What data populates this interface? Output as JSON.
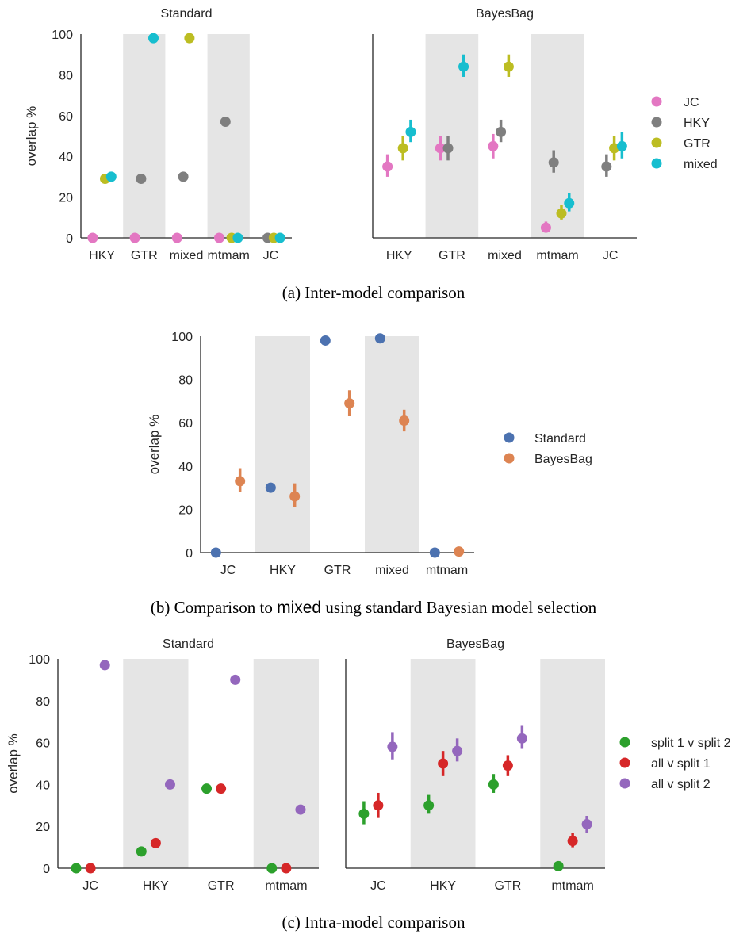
{
  "chart_data": [
    {
      "type": "scatter",
      "panel": "a",
      "caption": "(a) Inter-model comparison",
      "ylabel": "overlap %",
      "ylim": [
        0,
        100
      ],
      "yticks": [
        0,
        20,
        40,
        60,
        80,
        100
      ],
      "categories": [
        "HKY",
        "GTR",
        "mixed",
        "mtmam",
        "JC"
      ],
      "shaded_categories": [
        "GTR",
        "mtmam"
      ],
      "legend": {
        "placement": "right",
        "entries": [
          "JC",
          "HKY",
          "GTR",
          "mixed"
        ]
      },
      "colors": {
        "JC": "#e377c2",
        "HKY": "#7f7f7f",
        "GTR": "#bcbd22",
        "mixed": "#17becf"
      },
      "subplots": [
        {
          "title": "Standard",
          "series": [
            {
              "name": "JC",
              "values": [
                0,
                0,
                0,
                0,
                null
              ]
            },
            {
              "name": "HKY",
              "values": [
                null,
                29,
                30,
                57,
                0
              ]
            },
            {
              "name": "GTR",
              "values": [
                29,
                null,
                98,
                0,
                0
              ]
            },
            {
              "name": "mixed",
              "values": [
                30,
                98,
                null,
                0,
                0
              ]
            }
          ]
        },
        {
          "title": "BayesBag",
          "series": [
            {
              "name": "JC",
              "values": [
                35,
                44,
                45,
                5,
                null
              ],
              "err": [
                [
                  30,
                  41
                ],
                [
                  38,
                  50
                ],
                [
                  39,
                  51
                ],
                [
                  3,
                  8
                ],
                null
              ]
            },
            {
              "name": "HKY",
              "values": [
                null,
                44,
                52,
                37,
                35
              ],
              "err": [
                null,
                [
                  38,
                  50
                ],
                [
                  47,
                  58
                ],
                [
                  32,
                  43
                ],
                [
                  30,
                  41
                ]
              ]
            },
            {
              "name": "GTR",
              "values": [
                44,
                null,
                84,
                12,
                44
              ],
              "err": [
                [
                  38,
                  50
                ],
                null,
                [
                  79,
                  90
                ],
                [
                  9,
                  16
                ],
                [
                  38,
                  50
                ]
              ]
            },
            {
              "name": "mixed",
              "values": [
                52,
                84,
                null,
                17,
                45
              ],
              "err": [
                [
                  47,
                  58
                ],
                [
                  79,
                  90
                ],
                null,
                [
                  13,
                  22
                ],
                [
                  39,
                  52
                ]
              ]
            }
          ]
        }
      ]
    },
    {
      "type": "scatter",
      "panel": "b",
      "caption_before": "(b) Comparison to ",
      "caption_mono": "mixed",
      "caption_after": " using standard Bayesian model selection",
      "ylabel": "overlap %",
      "ylim": [
        0,
        100
      ],
      "yticks": [
        0,
        20,
        40,
        60,
        80,
        100
      ],
      "categories": [
        "JC",
        "HKY",
        "GTR",
        "mixed",
        "mtmam"
      ],
      "shaded_categories": [
        "HKY",
        "mixed"
      ],
      "legend": {
        "placement": "right",
        "entries": [
          "Standard",
          "BayesBag"
        ]
      },
      "colors": {
        "Standard": "#4c72b0",
        "BayesBag": "#dd8452"
      },
      "series": [
        {
          "name": "Standard",
          "values": [
            0,
            30,
            98,
            99,
            0
          ]
        },
        {
          "name": "BayesBag",
          "values": [
            33,
            26,
            69,
            61,
            0.5
          ],
          "err": [
            [
              28,
              39
            ],
            [
              21,
              32
            ],
            [
              63,
              75
            ],
            [
              56,
              66
            ],
            null
          ]
        }
      ]
    },
    {
      "type": "scatter",
      "panel": "c",
      "caption": "(c) Intra-model comparison",
      "ylabel": "overlap %",
      "ylim": [
        0,
        100
      ],
      "yticks": [
        0,
        20,
        40,
        60,
        80,
        100
      ],
      "categories": [
        "JC",
        "HKY",
        "GTR",
        "mtmam"
      ],
      "shaded_categories": [
        "HKY",
        "mtmam"
      ],
      "legend": {
        "placement": "right",
        "entries": [
          "split 1 v split 2",
          "all v split 1",
          "all v split 2"
        ]
      },
      "colors": {
        "split 1 v split 2": "#2ca02c",
        "all v split 1": "#d62728",
        "all v split 2": "#9467bd"
      },
      "subplots": [
        {
          "title": "Standard",
          "series": [
            {
              "name": "split 1 v split 2",
              "values": [
                0,
                8,
                38,
                0
              ]
            },
            {
              "name": "all v split 1",
              "values": [
                0,
                12,
                38,
                0
              ]
            },
            {
              "name": "all v split 2",
              "values": [
                97,
                40,
                90,
                28
              ]
            }
          ]
        },
        {
          "title": "BayesBag",
          "series": [
            {
              "name": "split 1 v split 2",
              "values": [
                26,
                30,
                40,
                1
              ],
              "err": [
                [
                  21,
                  32
                ],
                [
                  26,
                  35
                ],
                [
                  36,
                  45
                ],
                null
              ]
            },
            {
              "name": "all v split 1",
              "values": [
                30,
                50,
                49,
                13
              ],
              "err": [
                [
                  24,
                  36
                ],
                [
                  44,
                  56
                ],
                [
                  44,
                  54
                ],
                [
                  10,
                  17
                ]
              ]
            },
            {
              "name": "all v split 2",
              "values": [
                58,
                56,
                62,
                21
              ],
              "err": [
                [
                  52,
                  65
                ],
                [
                  51,
                  62
                ],
                [
                  57,
                  68
                ],
                [
                  17,
                  25
                ]
              ]
            }
          ]
        }
      ]
    }
  ]
}
